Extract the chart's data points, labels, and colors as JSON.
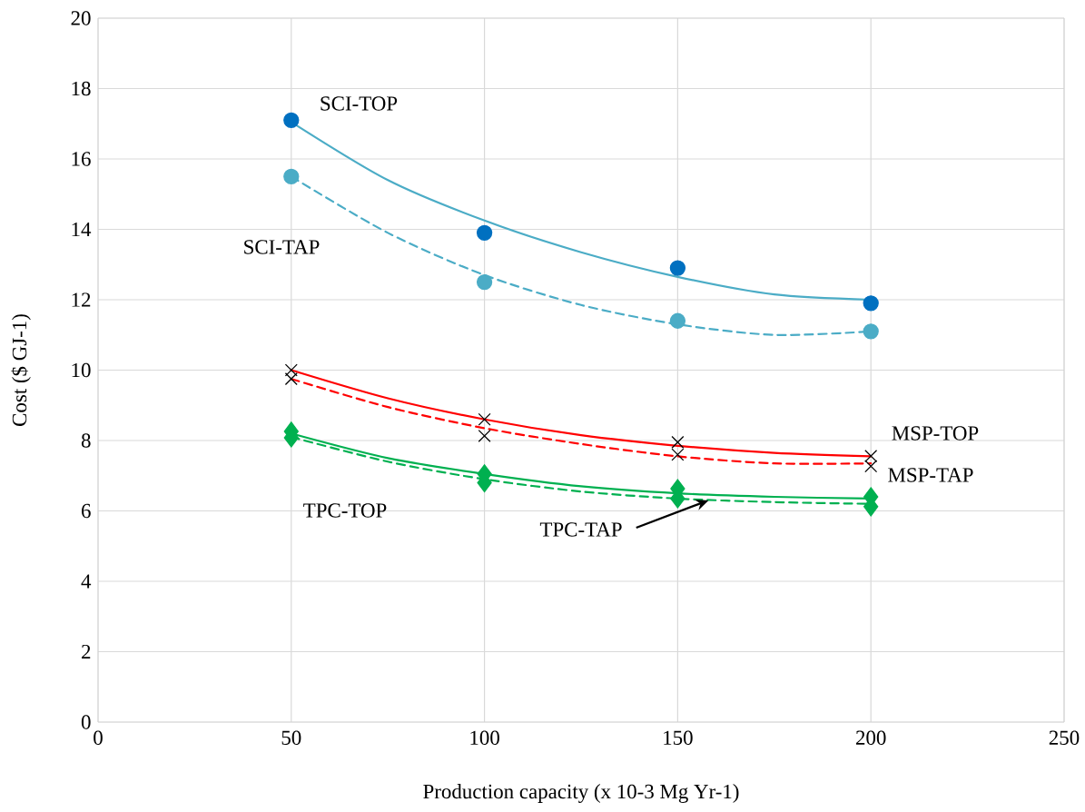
{
  "chart_data": {
    "type": "scatter",
    "xlabel": "Production capacity (x 10-3 Mg Yr-1)",
    "ylabel": "Cost ($ GJ-1)",
    "x": [
      50,
      100,
      150,
      200
    ],
    "xlim": [
      0,
      250
    ],
    "xticks": [
      0,
      50,
      100,
      150,
      200,
      250
    ],
    "ylim": [
      0,
      20
    ],
    "yticks": [
      0,
      2,
      4,
      6,
      8,
      10,
      12,
      14,
      16,
      18,
      20
    ],
    "grid": true,
    "series": [
      {
        "marker": "circle",
        "color": "#0070c0",
        "values": [
          17.1,
          13.9,
          12.9,
          11.9
        ]
      },
      {
        "marker": "circle",
        "color": "#4bacc6",
        "values": [
          15.5,
          12.5,
          11.4,
          11.1
        ]
      },
      {
        "marker": "cross",
        "color": "#000000",
        "values": [
          10.0,
          8.6,
          7.95,
          7.56
        ]
      },
      {
        "marker": "cross",
        "color": "#000000",
        "values": [
          9.75,
          8.13,
          7.6,
          7.27
        ]
      },
      {
        "marker": "diamond",
        "color": "#00b050",
        "values": [
          8.26,
          7.05,
          6.63,
          6.4
        ]
      },
      {
        "marker": "diamond",
        "color": "#00b050",
        "values": [
          8.08,
          6.8,
          6.35,
          6.12
        ]
      },
      {
        "type": "line",
        "line_style": "solid",
        "color": "#4bacc6",
        "x": [
          50,
          75,
          100,
          125,
          150,
          175,
          200
        ],
        "values": [
          17.05,
          15.4,
          14.25,
          13.35,
          12.65,
          12.15,
          12.0
        ]
      },
      {
        "type": "line",
        "line_style": "dashed",
        "color": "#4bacc6",
        "x": [
          50,
          75,
          100,
          125,
          150,
          175,
          200
        ],
        "values": [
          15.5,
          13.9,
          12.7,
          11.85,
          11.3,
          11.0,
          11.1
        ]
      },
      {
        "type": "line",
        "line_style": "solid",
        "color": "#ff0000",
        "x": [
          50,
          75,
          100,
          125,
          150,
          175,
          200
        ],
        "values": [
          10.0,
          9.2,
          8.6,
          8.15,
          7.85,
          7.65,
          7.55
        ]
      },
      {
        "type": "line",
        "line_style": "dashed",
        "color": "#ff0000",
        "x": [
          50,
          75,
          100,
          125,
          150,
          175,
          200
        ],
        "values": [
          9.75,
          8.95,
          8.35,
          7.9,
          7.55,
          7.35,
          7.35
        ]
      },
      {
        "type": "line",
        "line_style": "solid",
        "color": "#00b050",
        "x": [
          50,
          75,
          100,
          125,
          150,
          175,
          200
        ],
        "values": [
          8.2,
          7.5,
          7.05,
          6.7,
          6.5,
          6.4,
          6.35
        ]
      },
      {
        "type": "line",
        "line_style": "dashed",
        "color": "#00b050",
        "x": [
          50,
          75,
          100,
          125,
          150,
          175,
          200
        ],
        "values": [
          8.1,
          7.4,
          6.9,
          6.55,
          6.35,
          6.25,
          6.2
        ]
      }
    ],
    "annotations": [
      "SCI-TOP",
      "SCI-TAP",
      "MSP-TOP",
      "MSP-TAP",
      "TPC-TOP",
      {
        "text": "TPC-TAP",
        "x": 158,
        "y": 6.3
      }
    ]
  }
}
